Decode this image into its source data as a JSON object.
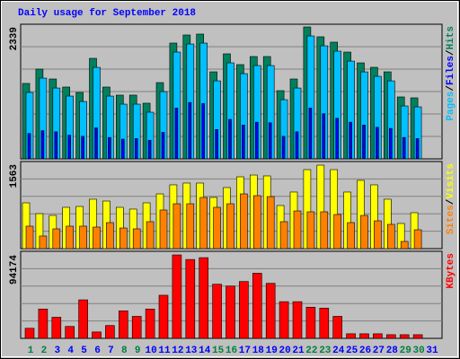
{
  "title": "Daily usage for September 2018",
  "legend_separator": "/",
  "chart_data": [
    {
      "type": "bar",
      "ylim": [
        0,
        2339
      ],
      "series": [
        {
          "name": "Hits",
          "color": "#00805c",
          "values": [
            1337,
            1591,
            1416,
            1273,
            1177,
            1782,
            1273,
            1130,
            1130,
            987,
            1352,
            2053,
            2196,
            2212,
            1543,
            1862,
            1671,
            1814,
            1814,
            1209,
            1416,
            2339,
            2164,
            2069,
            1893,
            1702,
            1623,
            1543,
            1098,
            1082,
            0
          ]
        },
        {
          "name": "Files",
          "color": "#0000ff",
          "values": [
            450,
            500,
            480,
            420,
            400,
            550,
            380,
            350,
            360,
            330,
            470,
            900,
            1000,
            980,
            520,
            700,
            600,
            650,
            640,
            400,
            480,
            900,
            800,
            720,
            650,
            600,
            560,
            540,
            380,
            360,
            0
          ]
        },
        {
          "name": "Pages",
          "color": "#00c0ff",
          "values": [
            1177,
            1431,
            1256,
            1113,
            1017,
            1622,
            1113,
            970,
            970,
            827,
            1192,
            1893,
            2036,
            2052,
            1383,
            1702,
            1511,
            1654,
            1654,
            1049,
            1256,
            2179,
            2004,
            1909,
            1733,
            1542,
            1463,
            1383,
            938,
            922,
            0
          ]
        }
      ]
    },
    {
      "type": "bar",
      "ylim": [
        0,
        1563
      ],
      "series": [
        {
          "name": "Visits",
          "color": "#ffff00",
          "values": [
            848,
            648,
            615,
            765,
            781,
            915,
            881,
            765,
            732,
            848,
            1014,
            1181,
            1214,
            1214,
            948,
            1131,
            1330,
            1363,
            1347,
            798,
            1048,
            1463,
            1546,
            1463,
            1048,
            1264,
            1181,
            915,
            466,
            665,
            0
          ]
        },
        {
          "name": "Sites",
          "color": "#ff8000",
          "values": [
            416,
            233,
            366,
            416,
            416,
            399,
            482,
            382,
            366,
            499,
            715,
            831,
            831,
            948,
            765,
            831,
            1014,
            981,
            964,
            499,
            698,
            682,
            682,
            632,
            482,
            615,
            515,
            449,
            133,
            349,
            0
          ]
        }
      ]
    },
    {
      "type": "bar",
      "ylim": [
        0,
        94174
      ],
      "categories": [
        "1",
        "2",
        "3",
        "4",
        "5",
        "6",
        "7",
        "8",
        "9",
        "10",
        "11",
        "12",
        "13",
        "14",
        "15",
        "16",
        "17",
        "18",
        "19",
        "20",
        "21",
        "22",
        "23",
        "24",
        "25",
        "26",
        "27",
        "28",
        "29",
        "30",
        "31"
      ],
      "category_colors": [
        "#008040",
        "#008040",
        "#0000ff",
        "#0000ff",
        "#0000ff",
        "#0000ff",
        "#0000ff",
        "#008040",
        "#008040",
        "#0000ff",
        "#0000ff",
        "#0000ff",
        "#0000ff",
        "#0000ff",
        "#008040",
        "#008040",
        "#0000ff",
        "#0000ff",
        "#0000ff",
        "#0000ff",
        "#0000ff",
        "#008040",
        "#008040",
        "#0000ff",
        "#0000ff",
        "#0000ff",
        "#0000ff",
        "#0000ff",
        "#008040",
        "#008040",
        "#0000ff"
      ],
      "series": [
        {
          "name": "KBytes",
          "color": "#ff0000",
          "values": [
            11384,
            33116,
            23802,
            13453,
            43465,
            7244,
            14488,
            31046,
            24837,
            33116,
            48640,
            94174,
            89000,
            91069,
            61059,
            58988,
            64163,
            73476,
            62093,
            41395,
            41395,
            35186,
            34151,
            24837,
            5174,
            5174,
            5174,
            4140,
            4140,
            4140,
            0
          ]
        }
      ]
    }
  ]
}
